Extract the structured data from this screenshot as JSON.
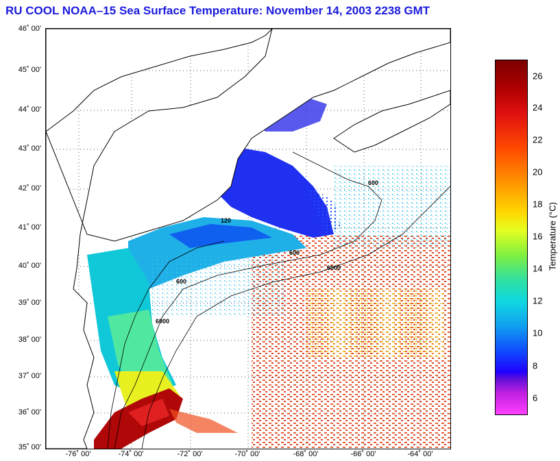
{
  "title": "RU COOL  NOAA–15  Sea Surface Temperature:  November 14, 2003 2238 GMT",
  "lat_labels": [
    "46˚ 00'",
    "45˚ 00'",
    "44˚ 00'",
    "43˚ 00'",
    "42˚ 00'",
    "41˚ 00'",
    "40˚ 00'",
    "39˚ 00'",
    "38˚ 00'",
    "37˚ 00'",
    "36˚ 00'",
    "35˚ 00'"
  ],
  "lon_labels": [
    "-76˚ 00'",
    "-74˚ 00'",
    "-72˚ 00'",
    "-70˚ 00'",
    "-68˚ 00'",
    "-66˚ 00'",
    "-64˚ 00'"
  ],
  "colorbar": {
    "label": "Temperature (°C)",
    "ticks": [
      "26",
      "24",
      "22",
      "20",
      "18",
      "16",
      "14",
      "12",
      "10",
      "8",
      "6"
    ]
  },
  "isobath_labels": [
    "600",
    "6000",
    "120"
  ],
  "colors": {
    "title": "#1a1adc",
    "coast": "#000000"
  }
}
